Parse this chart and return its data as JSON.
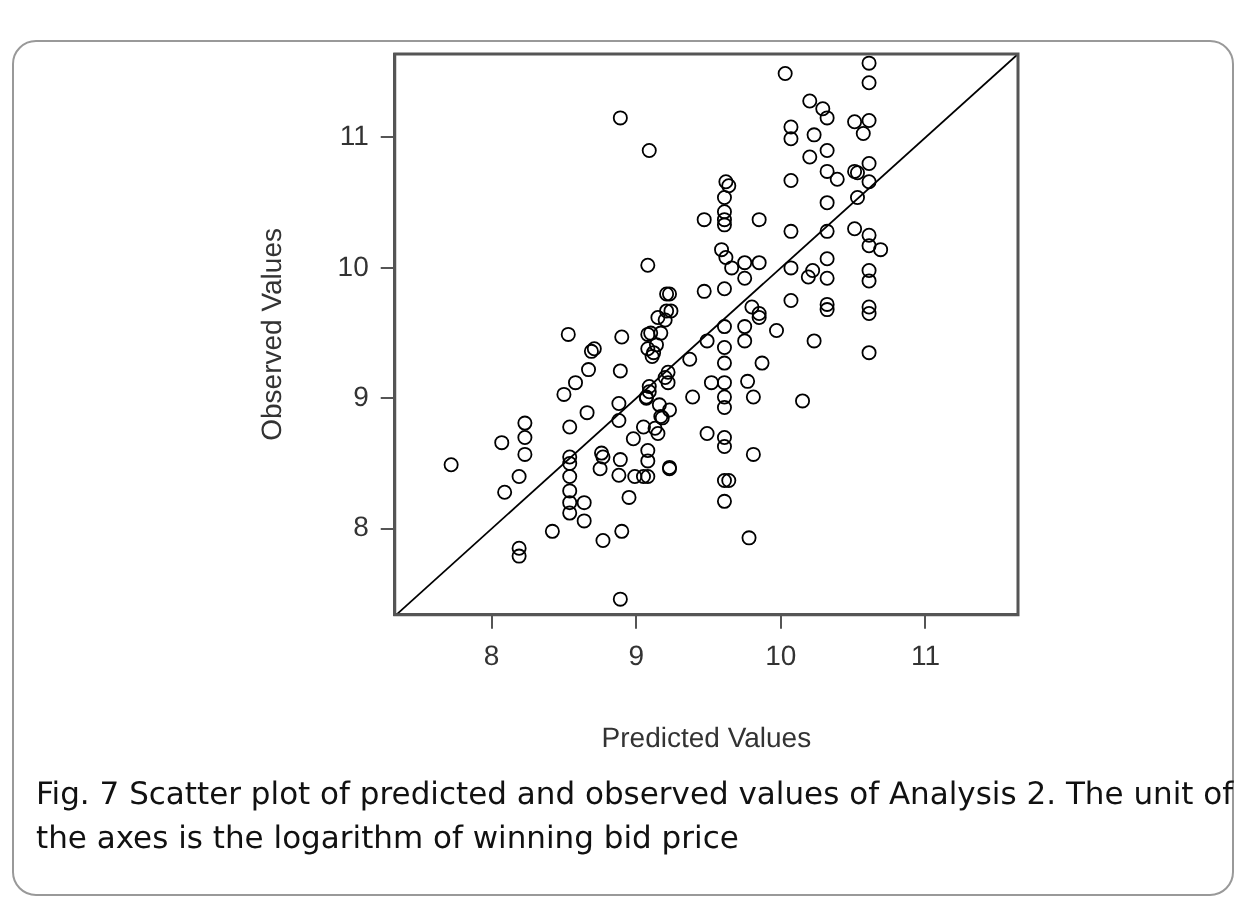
{
  "chart_data": {
    "type": "scatter",
    "xlabel": "Predicted Values",
    "ylabel": "Observed Values",
    "xlim": [
      7.33,
      11.64
    ],
    "ylim": [
      7.34,
      11.64
    ],
    "xticks": [
      8,
      9,
      10,
      11
    ],
    "yticks": [
      8,
      9,
      10,
      11
    ],
    "grid": false,
    "annotations": [
      "Fig. 7  Scatter plot of predicted and observed values of Analysis 2. The unit of the axes is the logarithm of winning bid price"
    ],
    "series": [
      {
        "type": "scatter",
        "marker": "circle",
        "color": "#000000",
        "x": [
          7.72,
          8.07,
          8.09,
          8.19,
          8.19,
          8.19,
          8.23,
          8.23,
          8.23,
          8.42,
          8.5,
          8.53,
          8.54,
          8.54,
          8.54,
          8.54,
          8.54,
          8.54,
          8.54,
          8.58,
          8.64,
          8.64,
          8.66,
          8.67,
          8.69,
          8.71,
          8.76,
          8.77,
          8.75,
          8.77,
          8.88,
          8.89,
          8.9,
          8.88,
          8.89,
          8.88,
          8.9,
          8.89,
          8.95,
          8.98,
          8.99,
          9.05,
          9.08,
          9.08,
          9.08,
          9.08,
          9.07,
          9.09,
          9.08,
          9.11,
          9.14,
          9.15,
          9.17,
          9.21,
          9.24,
          9.2,
          9.23,
          9.17,
          9.15,
          9.23,
          9.22,
          9.22,
          8.89,
          9.09,
          9.08,
          9.21,
          10.03,
          10.61,
          10.61,
          10.2,
          10.29,
          10.32,
          10.51,
          10.61,
          10.57,
          10.07,
          10.07,
          10.23,
          10.2,
          10.32,
          10.32,
          10.07,
          10.39,
          10.51,
          10.53,
          10.61,
          10.61,
          10.53,
          10.32,
          9.62,
          9.64,
          9.61,
          9.61,
          9.61,
          9.61,
          9.47,
          9.85,
          10.07,
          10.32,
          10.51,
          10.61,
          10.61,
          10.69,
          9.59,
          9.62,
          9.66,
          9.75,
          9.85,
          10.07,
          10.22,
          10.32,
          10.19,
          10.32,
          10.61,
          10.61,
          9.47,
          9.61,
          9.23,
          9.75,
          10.07,
          10.32,
          10.61,
          9.8,
          9.85,
          9.75,
          9.75,
          9.85,
          9.97,
          10.32,
          10.61,
          10.61,
          10.23,
          9.61,
          9.61,
          9.61,
          9.61,
          9.61,
          9.61,
          9.49,
          9.37,
          9.52,
          9.77,
          9.87,
          9.39,
          9.81,
          10.15,
          9.49,
          9.61,
          9.61,
          9.81,
          9.61,
          9.64,
          9.61,
          9.78,
          9.23,
          9.05,
          9.07,
          9.09,
          9.13,
          9.16,
          9.18,
          9.1,
          9.12,
          9.2
        ],
        "values": [
          8.49,
          8.66,
          8.28,
          8.4,
          7.85,
          7.79,
          8.81,
          8.7,
          8.57,
          7.98,
          9.03,
          9.49,
          8.78,
          8.55,
          8.5,
          8.4,
          8.29,
          8.2,
          8.12,
          9.12,
          8.2,
          8.06,
          8.89,
          9.22,
          9.36,
          9.38,
          8.58,
          8.55,
          8.46,
          7.91,
          8.96,
          9.21,
          9.47,
          8.83,
          8.53,
          8.41,
          7.98,
          7.46,
          8.24,
          8.69,
          8.4,
          8.78,
          9.49,
          8.52,
          8.4,
          8.6,
          9.01,
          9.09,
          9.38,
          9.32,
          9.41,
          9.62,
          9.5,
          9.67,
          9.67,
          9.16,
          8.91,
          8.86,
          8.73,
          8.47,
          9.2,
          9.12,
          11.15,
          10.9,
          10.02,
          9.8,
          11.49,
          11.57,
          11.42,
          11.28,
          11.22,
          11.15,
          11.12,
          11.13,
          11.03,
          11.08,
          10.99,
          11.02,
          10.85,
          10.9,
          10.74,
          10.67,
          10.68,
          10.74,
          10.73,
          10.8,
          10.66,
          10.54,
          10.5,
          10.66,
          10.63,
          10.54,
          10.43,
          10.37,
          10.33,
          10.37,
          10.37,
          10.28,
          10.28,
          10.3,
          10.25,
          10.17,
          10.14,
          10.14,
          10.08,
          10.0,
          10.04,
          10.04,
          10.0,
          9.98,
          10.07,
          9.93,
          9.92,
          9.98,
          9.9,
          9.82,
          9.84,
          9.8,
          9.92,
          9.75,
          9.72,
          9.7,
          9.7,
          9.62,
          9.55,
          9.44,
          9.65,
          9.52,
          9.68,
          9.65,
          9.35,
          9.44,
          9.55,
          9.39,
          9.27,
          9.12,
          9.01,
          8.93,
          9.44,
          9.3,
          9.12,
          9.13,
          9.27,
          9.01,
          9.01,
          8.98,
          8.73,
          8.7,
          8.63,
          8.57,
          8.37,
          8.37,
          8.21,
          7.93,
          8.46,
          8.4,
          9.0,
          9.05,
          8.77,
          8.95,
          8.85,
          9.5,
          9.35,
          9.6
        ]
      },
      {
        "type": "line",
        "color": "#000000",
        "x": [
          7.34,
          11.64
        ],
        "values": [
          7.34,
          11.64
        ]
      }
    ]
  }
}
